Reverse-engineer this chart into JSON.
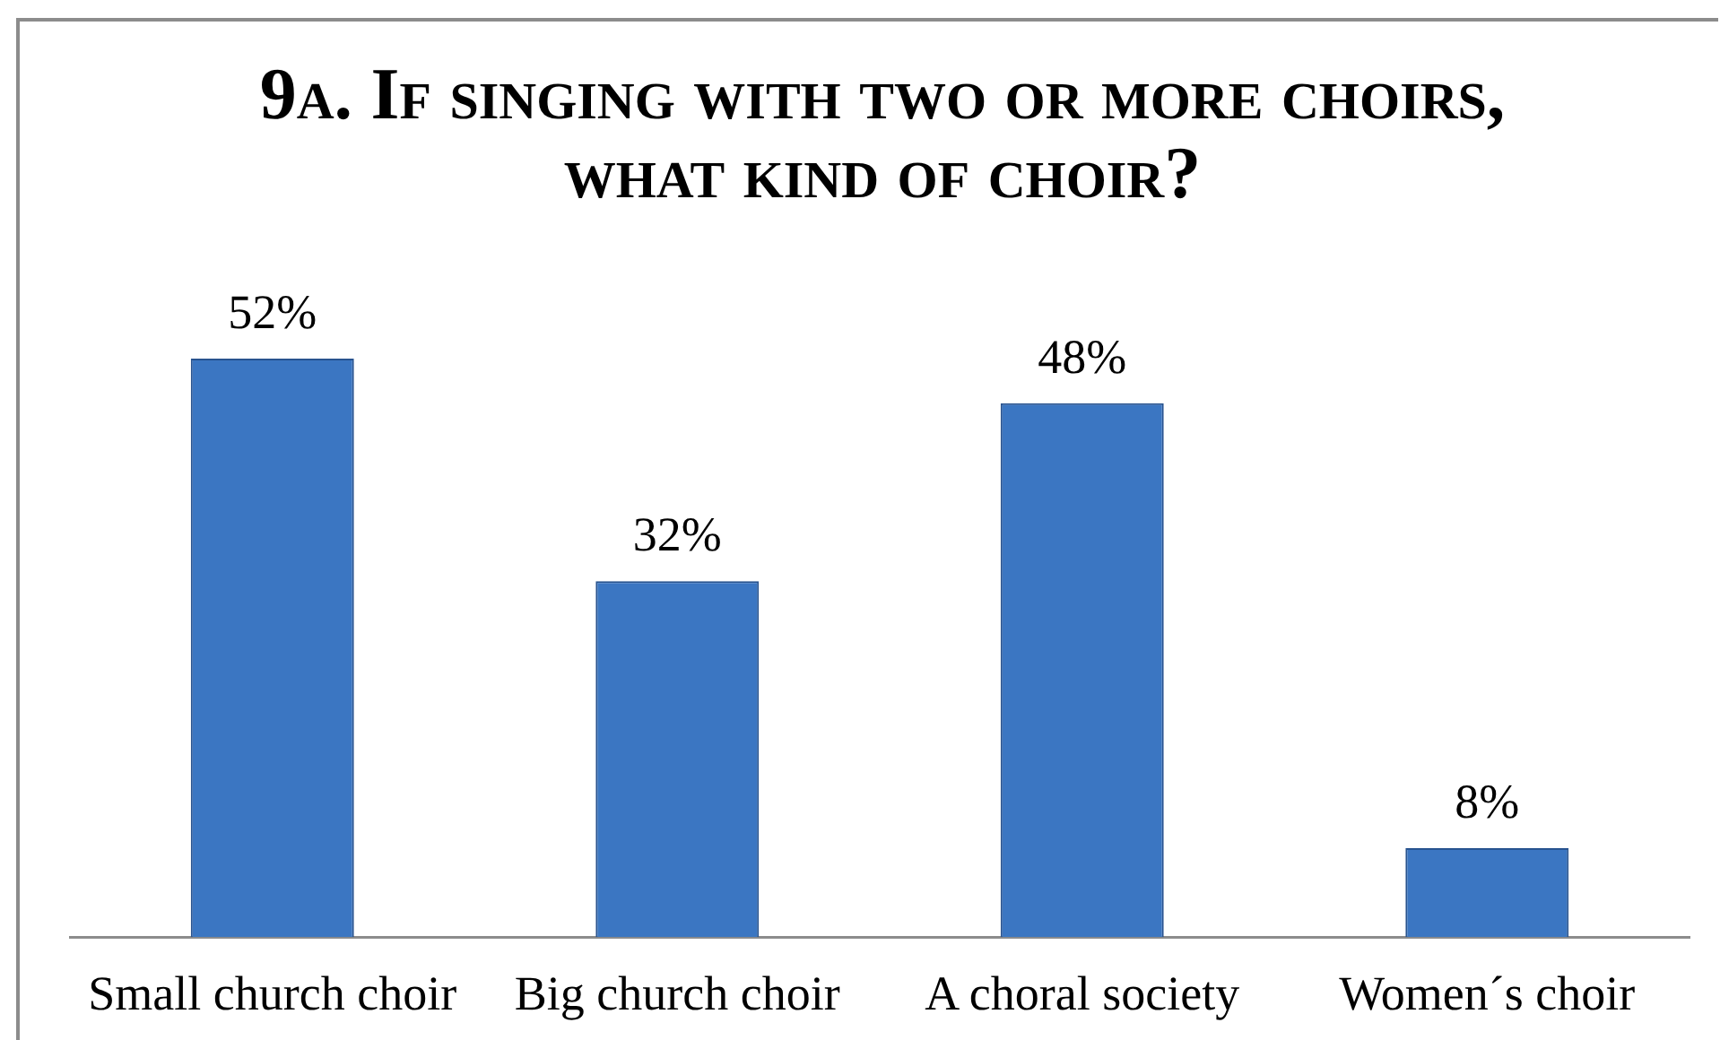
{
  "chart_data": {
    "type": "bar",
    "title": "9a. If singing with two or more choirs, what kind of choir?",
    "categories": [
      "Small church choir",
      "Big church choir",
      "A choral society",
      "Women´s choir"
    ],
    "values": [
      52,
      32,
      48,
      8
    ],
    "color": "#3b76c2",
    "value_labels": [
      "52%",
      "32%",
      "48%",
      "8%"
    ]
  }
}
